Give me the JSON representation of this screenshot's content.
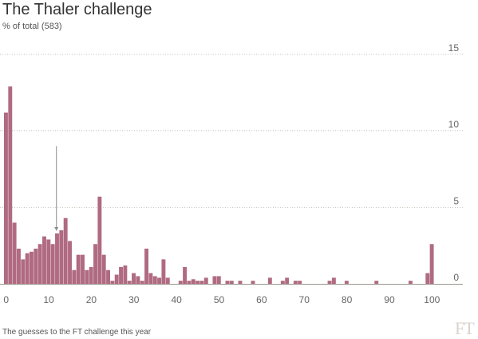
{
  "header": {
    "title": "The Thaler challenge",
    "subtitle": "% of total (583)"
  },
  "footer": {
    "source": "The guesses to the FT challenge this year",
    "logo": "FT"
  },
  "colors": {
    "bar": "#b06a82",
    "grid": "#c8c2bb",
    "axis": "#9a9590",
    "annotation": "#8c8c8c"
  },
  "chart_data": {
    "type": "bar",
    "title": "The Thaler challenge",
    "subtitle": "% of total (583)",
    "xlabel": "",
    "ylabel": "",
    "xlim": [
      0,
      105
    ],
    "ylim": [
      0,
      15
    ],
    "x_ticks": [
      0,
      10,
      20,
      30,
      40,
      50,
      60,
      70,
      80,
      90,
      100
    ],
    "y_ticks": [
      0,
      5,
      10,
      15
    ],
    "grid": true,
    "legend": "none",
    "annotation_x": 12,
    "x": [
      0,
      1,
      2,
      3,
      4,
      5,
      6,
      7,
      8,
      9,
      10,
      11,
      12,
      13,
      14,
      15,
      16,
      17,
      18,
      19,
      20,
      21,
      22,
      23,
      24,
      25,
      26,
      27,
      28,
      29,
      30,
      31,
      32,
      33,
      34,
      35,
      36,
      37,
      38,
      41,
      42,
      43,
      44,
      45,
      46,
      47,
      49,
      50,
      52,
      53,
      55,
      58,
      62,
      65,
      66,
      68,
      69,
      76,
      77,
      80,
      87,
      95,
      99,
      100
    ],
    "values": [
      11.2,
      12.9,
      4.0,
      2.3,
      1.6,
      2.0,
      2.1,
      2.3,
      2.6,
      3.1,
      2.9,
      2.6,
      3.3,
      3.5,
      4.3,
      2.8,
      0.9,
      1.9,
      1.9,
      0.9,
      1.1,
      2.6,
      5.7,
      1.9,
      0.9,
      0.2,
      0.6,
      1.1,
      1.2,
      0.2,
      0.7,
      0.5,
      0.2,
      2.3,
      0.7,
      0.5,
      0.4,
      1.6,
      0.4,
      0.2,
      1.1,
      0.2,
      0.3,
      0.2,
      0.2,
      0.4,
      0.5,
      0.5,
      0.2,
      0.2,
      0.2,
      0.2,
      0.4,
      0.2,
      0.4,
      0.2,
      0.2,
      0.2,
      0.4,
      0.2,
      0.2,
      0.2,
      0.7,
      2.6
    ]
  }
}
